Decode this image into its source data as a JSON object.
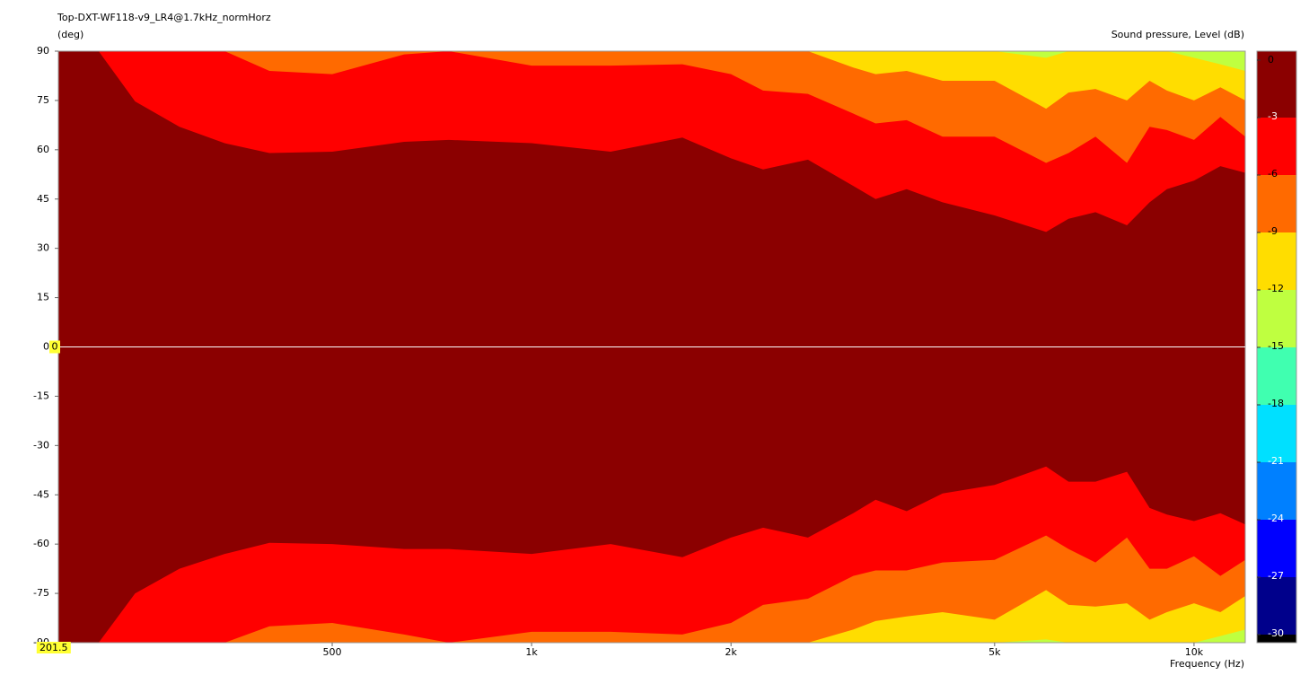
{
  "chart_data": {
    "type": "contour",
    "title": "Top-DXT-WF118-v9_LR4@1.7kHz_normHorz",
    "y_label": "(deg)",
    "x_label": "Frequency  (Hz)",
    "xscale": "log",
    "xlim": [
      193,
      11950
    ],
    "ylim": [
      -90,
      90
    ],
    "xticks": [
      500,
      {
        "value": 1000,
        "label": "1k"
      },
      {
        "value": 2000,
        "label": "2k"
      },
      {
        "value": 5000,
        "label": "5k"
      },
      {
        "value": 10000,
        "label": "10k"
      }
    ],
    "yticks": [
      90,
      75,
      60,
      45,
      30,
      15,
      0,
      -15,
      -30,
      -45,
      -60,
      -75,
      -90
    ],
    "background_color": "#bfff40",
    "x": [
      193,
      222,
      252,
      294,
      344,
      402,
      500,
      642,
      750,
      1000,
      1316,
      1689,
      2000,
      2236,
      2613,
      3059,
      3306,
      3683,
      4173,
      5000,
      5980,
      6465,
      7100,
      7920,
      8570,
      9100,
      10000,
      10960,
      11950
    ],
    "contours": [
      {
        "level": -12,
        "color": "#ffdd00",
        "upper": [
          90,
          90,
          90,
          90,
          90,
          90,
          90,
          90,
          90,
          90,
          90,
          90,
          90,
          90,
          90,
          90,
          90,
          90,
          90,
          90,
          88,
          90,
          90,
          90,
          90,
          90,
          88,
          86,
          84
        ],
        "lower": [
          -90,
          -90,
          -90,
          -90,
          -90,
          -90,
          -90,
          -90,
          -90,
          -90,
          -90,
          -90,
          -90,
          -90,
          -90,
          -90,
          -90,
          -90,
          -90,
          -90,
          -89,
          -90,
          -90,
          -90,
          -90,
          -90,
          -90,
          -88,
          -86
        ]
      },
      {
        "level": -9,
        "color": "#ff6a00",
        "upper": [
          90,
          90,
          90,
          90,
          90,
          90,
          90,
          90,
          90,
          90,
          90,
          90,
          90,
          90,
          90,
          85,
          83,
          84,
          81,
          81,
          72.5,
          77.4,
          78.5,
          75,
          81,
          78,
          75,
          79,
          75
        ],
        "lower": [
          -90,
          -90,
          -90,
          -90,
          -90,
          -90,
          -90,
          -90,
          -90,
          -90,
          -90,
          -90,
          -90,
          -90,
          -90,
          -86,
          -83.4,
          -82,
          -80.7,
          -83,
          -74,
          -78.5,
          -79,
          -78,
          -83,
          -80.7,
          -78,
          -80.7,
          -75.8
        ]
      },
      {
        "level": -6,
        "color": "#ff0000",
        "upper": [
          90,
          90,
          90,
          90,
          90,
          84,
          83,
          89,
          90,
          85.6,
          85.6,
          86,
          83,
          78,
          77,
          71,
          68,
          69,
          64,
          64,
          56,
          59,
          64,
          56,
          67,
          66,
          63,
          70,
          64
        ],
        "lower": [
          -90,
          -90,
          -90,
          -90,
          -90,
          -85,
          -84,
          -87.5,
          -90,
          -86.7,
          -86.7,
          -87.5,
          -84,
          -78.5,
          -76.6,
          -69.7,
          -68,
          -68,
          -65.6,
          -64.8,
          -57.4,
          -61.5,
          -65.6,
          -58,
          -67.5,
          -67.5,
          -63.7,
          -69.7,
          -64.8
        ]
      },
      {
        "level": -3,
        "color": "#8b0000",
        "upper": [
          90,
          90,
          74.7,
          67,
          62,
          59,
          59.4,
          62.4,
          63,
          62,
          59.4,
          63.7,
          57.4,
          54,
          57,
          49,
          45,
          48,
          44,
          40,
          35,
          39,
          41,
          37,
          44,
          48,
          50.6,
          55,
          53
        ],
        "lower": [
          -90,
          -90,
          -75,
          -67.5,
          -63,
          -59.6,
          -60,
          -61.5,
          -61.5,
          -63,
          -60,
          -64,
          -58,
          -55,
          -58,
          -50.6,
          -46.5,
          -50,
          -44.6,
          -42,
          -36.4,
          -41,
          -41,
          -38,
          -49,
          -51,
          -53,
          -50.6,
          -54
        ]
      }
    ],
    "cursor": {
      "x": 201.5,
      "y": 0
    },
    "colorbar": {
      "label": "Sound pressure, Level  (dB)",
      "ticks": [
        0,
        -3,
        -6,
        -9,
        -12,
        -15,
        -18,
        -21,
        -24,
        -27,
        -30
      ],
      "colors": [
        "#8b0000",
        "#ff0000",
        "#ff6a00",
        "#ffdd00",
        "#bfff40",
        "#40ffb0",
        "#00e0ff",
        "#0080ff",
        "#0000ff",
        "#00008b"
      ],
      "below_color": "#000000"
    }
  }
}
